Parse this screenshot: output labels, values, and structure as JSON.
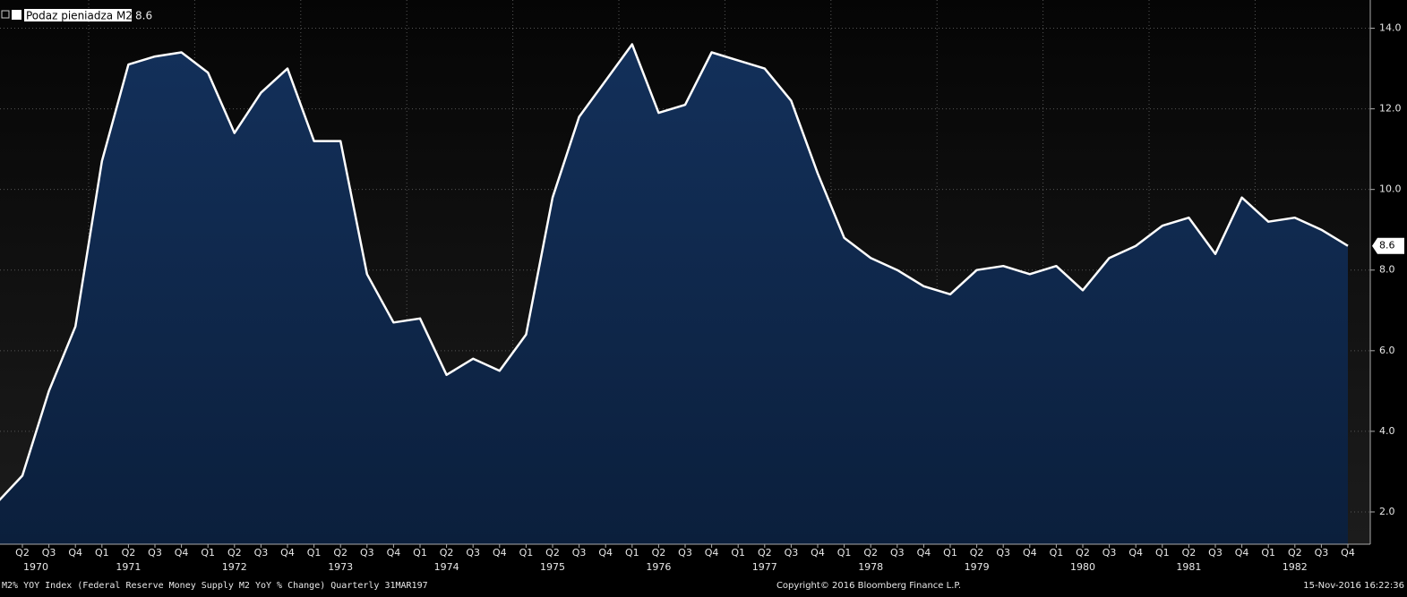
{
  "chart_data": {
    "type": "area",
    "legend": {
      "label": "Podaz pieniadza M2"
    },
    "categories": [
      null,
      "Q2",
      "Q3",
      "Q4",
      "Q1",
      "Q2",
      "Q3",
      "Q4",
      "Q1",
      "Q2",
      "Q3",
      "Q4",
      "Q1",
      "Q2",
      "Q3",
      "Q4",
      "Q1",
      "Q2",
      "Q3",
      "Q4",
      "Q1",
      "Q2",
      "Q3",
      "Q4",
      "Q1",
      "Q2",
      "Q3",
      "Q4",
      "Q1",
      "Q2",
      "Q3",
      "Q4",
      "Q1",
      "Q2",
      "Q3",
      "Q4",
      "Q1",
      "Q2",
      "Q3",
      "Q4",
      "Q1",
      "Q2",
      "Q3",
      "Q4",
      "Q1",
      "Q2",
      "Q3",
      "Q4",
      "Q1",
      "Q2",
      "Q3",
      "Q4"
    ],
    "years": [
      "1970",
      "1971",
      "1972",
      "1973",
      "1974",
      "1975",
      "1976",
      "1977",
      "1978",
      "1979",
      "1980",
      "1981",
      "1982"
    ],
    "series": [
      {
        "name": "Podaz pieniadza M2",
        "color": "#ffffff",
        "values": [
          2.2,
          2.9,
          5.0,
          6.6,
          10.7,
          13.1,
          13.3,
          13.4,
          12.9,
          11.4,
          12.4,
          13.0,
          11.2,
          11.2,
          7.9,
          6.7,
          6.8,
          5.4,
          5.8,
          5.5,
          6.4,
          9.8,
          11.8,
          12.7,
          13.6,
          11.9,
          12.1,
          13.4,
          13.2,
          13.0,
          12.2,
          10.4,
          8.8,
          8.3,
          8.0,
          7.6,
          7.4,
          8.0,
          8.1,
          7.9,
          8.1,
          7.5,
          8.3,
          8.6,
          9.1,
          9.3,
          8.4,
          9.8,
          9.2,
          9.3,
          9.0,
          8.6
        ]
      }
    ],
    "ylim": [
      1.2,
      14.7
    ],
    "yticks": [
      {
        "value": 2,
        "label": "2.0"
      },
      {
        "value": 4,
        "label": "4.0"
      },
      {
        "value": 6,
        "label": "6.0"
      },
      {
        "value": 8,
        "label": "8.0"
      },
      {
        "value": 10,
        "label": "10.0"
      },
      {
        "value": 12,
        "label": "12.0"
      },
      {
        "value": 14,
        "label": "14.0"
      }
    ],
    "grid": true,
    "footer": {
      "left": "M2% YOY Index (Federal Reserve Money Supply M2 YoY % Change)  Quarterly 31MAR197",
      "center": "Copyright© 2016 Bloomberg Finance L.P.",
      "right": "15-Nov-2016 16:22:36"
    }
  }
}
